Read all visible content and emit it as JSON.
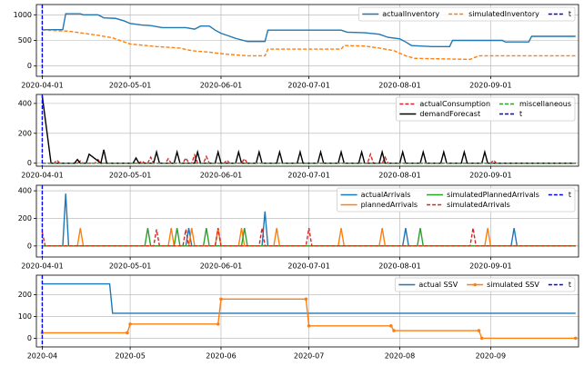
{
  "chart_data": [
    {
      "type": "line",
      "xlim": [
        "2020-03-30",
        "2020-10-01"
      ],
      "ylim": [
        -200,
        1200
      ],
      "yticks": [
        0,
        500,
        1000
      ],
      "xticks": [
        "2020-04-01",
        "2020-05-01",
        "2020-06-01",
        "2020-07-01",
        "2020-08-01",
        "2020-09-01"
      ],
      "grid": true,
      "legend": "upper right",
      "legend_columns": 3,
      "series": [
        {
          "name": "actualInventory",
          "color": "#1f77b4",
          "linestyle": "solid",
          "x": [
            "2020-04-01",
            "2020-04-08",
            "2020-04-09",
            "2020-04-14",
            "2020-04-15",
            "2020-04-20",
            "2020-04-22",
            "2020-04-26",
            "2020-04-29",
            "2020-05-01",
            "2020-05-05",
            "2020-05-08",
            "2020-05-12",
            "2020-05-20",
            "2020-05-23",
            "2020-05-25",
            "2020-05-28",
            "2020-05-30",
            "2020-06-01",
            "2020-06-03",
            "2020-06-06",
            "2020-06-10",
            "2020-06-16",
            "2020-06-17",
            "2020-07-12",
            "2020-07-14",
            "2020-07-20",
            "2020-07-25",
            "2020-07-28",
            "2020-08-01",
            "2020-08-03",
            "2020-08-05",
            "2020-08-12",
            "2020-08-18",
            "2020-08-19",
            "2020-09-05",
            "2020-09-06",
            "2020-09-14",
            "2020-09-15",
            "2020-09-30"
          ],
          "values": [
            710,
            710,
            1020,
            1020,
            1000,
            1000,
            940,
            930,
            880,
            830,
            800,
            790,
            750,
            750,
            720,
            780,
            780,
            700,
            640,
            600,
            540,
            480,
            480,
            700,
            700,
            660,
            650,
            620,
            560,
            530,
            470,
            400,
            380,
            380,
            500,
            500,
            470,
            470,
            580,
            580
          ]
        },
        {
          "name": "simulatedInventory",
          "color": "#ff7f0e",
          "linestyle": "dashed",
          "x": [
            "2020-04-01",
            "2020-04-10",
            "2020-04-15",
            "2020-04-20",
            "2020-04-25",
            "2020-05-01",
            "2020-05-10",
            "2020-05-18",
            "2020-05-22",
            "2020-05-28",
            "2020-06-03",
            "2020-06-10",
            "2020-06-16",
            "2020-06-17",
            "2020-07-12",
            "2020-07-13",
            "2020-07-20",
            "2020-07-25",
            "2020-07-30",
            "2020-08-03",
            "2020-08-06",
            "2020-08-25",
            "2020-08-28",
            "2020-09-30"
          ],
          "values": [
            700,
            680,
            640,
            600,
            550,
            430,
            380,
            350,
            300,
            270,
            230,
            200,
            200,
            330,
            330,
            400,
            390,
            350,
            300,
            200,
            150,
            130,
            200,
            200
          ]
        }
      ],
      "vlines": [
        {
          "name": "t",
          "x": "2020-04-01",
          "color": "#0000ff"
        }
      ]
    },
    {
      "type": "line",
      "xlim": [
        "2020-03-30",
        "2020-10-01"
      ],
      "ylim": [
        -20,
        460
      ],
      "yticks": [
        0,
        200,
        400
      ],
      "xticks": [
        "2020-04-01",
        "2020-05-01",
        "2020-06-01",
        "2020-07-01",
        "2020-08-01",
        "2020-09-01"
      ],
      "grid": true,
      "legend": "upper right",
      "legend_columns": 3,
      "series": [
        {
          "name": "actualConsumption",
          "color": "#d62728",
          "linestyle": "dashed",
          "x": [
            "2020-04-01",
            "2020-04-05",
            "2020-04-06",
            "2020-04-07",
            "2020-04-13",
            "2020-04-14",
            "2020-04-15",
            "2020-04-19",
            "2020-04-20",
            "2020-04-21",
            "2020-05-04",
            "2020-05-05",
            "2020-05-06",
            "2020-05-07",
            "2020-05-08",
            "2020-05-09",
            "2020-05-13",
            "2020-05-14",
            "2020-05-15",
            "2020-05-19",
            "2020-05-20",
            "2020-05-21",
            "2020-05-22",
            "2020-05-23",
            "2020-05-24",
            "2020-05-26",
            "2020-05-27",
            "2020-05-28",
            "2020-06-02",
            "2020-06-03",
            "2020-06-04",
            "2020-06-08",
            "2020-06-09",
            "2020-06-10",
            "2020-07-21",
            "2020-07-22",
            "2020-07-23",
            "2020-07-26",
            "2020-07-27",
            "2020-07-28",
            "2020-09-01",
            "2020-09-02",
            "2020-09-03",
            "2020-09-30"
          ],
          "values": [
            0,
            0,
            20,
            0,
            0,
            15,
            0,
            0,
            25,
            0,
            0,
            15,
            0,
            0,
            40,
            0,
            0,
            30,
            0,
            0,
            35,
            0,
            0,
            55,
            0,
            0,
            45,
            0,
            0,
            20,
            0,
            0,
            30,
            0,
            0,
            60,
            0,
            0,
            40,
            0,
            0,
            20,
            0,
            0
          ]
        },
        {
          "name": "demandForecast",
          "color": "#000000",
          "linestyle": "solid",
          "x": [
            "2020-04-01",
            "2020-04-04",
            "2020-04-12",
            "2020-04-13",
            "2020-04-14",
            "2020-04-16",
            "2020-04-17",
            "2020-04-21",
            "2020-04-22",
            "2020-04-23",
            "2020-05-02",
            "2020-05-03",
            "2020-05-04",
            "2020-05-09",
            "2020-05-10",
            "2020-05-11",
            "2020-05-16",
            "2020-05-17",
            "2020-05-18",
            "2020-05-23",
            "2020-05-24",
            "2020-05-25",
            "2020-05-30",
            "2020-05-31",
            "2020-06-01",
            "2020-06-06",
            "2020-06-07",
            "2020-06-08",
            "2020-06-13",
            "2020-06-14",
            "2020-06-15",
            "2020-06-20",
            "2020-06-21",
            "2020-06-22",
            "2020-06-27",
            "2020-06-28",
            "2020-06-29",
            "2020-07-04",
            "2020-07-05",
            "2020-07-06",
            "2020-07-11",
            "2020-07-12",
            "2020-07-13",
            "2020-07-18",
            "2020-07-19",
            "2020-07-20",
            "2020-07-25",
            "2020-07-26",
            "2020-07-27",
            "2020-08-01",
            "2020-08-02",
            "2020-08-03",
            "2020-08-08",
            "2020-08-09",
            "2020-08-10",
            "2020-08-15",
            "2020-08-16",
            "2020-08-17",
            "2020-08-22",
            "2020-08-23",
            "2020-08-24",
            "2020-08-29",
            "2020-08-30",
            "2020-08-31",
            "2020-09-30"
          ],
          "values": [
            450,
            0,
            0,
            25,
            0,
            0,
            60,
            0,
            90,
            0,
            0,
            35,
            0,
            0,
            75,
            0,
            0,
            75,
            0,
            0,
            75,
            0,
            0,
            75,
            0,
            0,
            75,
            0,
            0,
            75,
            0,
            0,
            75,
            0,
            0,
            75,
            0,
            0,
            75,
            0,
            0,
            75,
            0,
            0,
            75,
            0,
            0,
            75,
            0,
            0,
            75,
            0,
            0,
            75,
            0,
            0,
            75,
            0,
            0,
            75,
            0,
            0,
            75,
            0,
            0
          ]
        },
        {
          "name": "miscellaneous",
          "color": "#2ca02c",
          "linestyle": "dashed",
          "x": [
            "2020-04-01",
            "2020-09-30"
          ],
          "values": [
            0,
            0
          ]
        }
      ],
      "vlines": [
        {
          "name": "t",
          "x": "2020-04-01",
          "color": "#0000ff"
        }
      ]
    },
    {
      "type": "line",
      "xlim": [
        "2020-03-30",
        "2020-10-01"
      ],
      "ylim": [
        -80,
        440
      ],
      "yticks": [
        0,
        200,
        400
      ],
      "xticks": [
        "2020-04-01",
        "2020-05-01",
        "2020-06-01",
        "2020-07-01",
        "2020-08-01",
        "2020-09-01"
      ],
      "grid": true,
      "legend": "upper right",
      "legend_columns": 3,
      "series": [
        {
          "name": "actualArrivals",
          "color": "#1f77b4",
          "linestyle": "solid",
          "x": [
            "2020-04-01",
            "2020-04-08",
            "2020-04-09",
            "2020-04-10",
            "2020-05-20",
            "2020-05-21",
            "2020-05-22",
            "2020-06-15",
            "2020-06-16",
            "2020-06-17",
            "2020-08-02",
            "2020-08-03",
            "2020-08-04",
            "2020-09-08",
            "2020-09-09",
            "2020-09-10",
            "2020-09-30"
          ],
          "values": [
            0,
            0,
            380,
            0,
            0,
            130,
            0,
            0,
            250,
            0,
            0,
            130,
            0,
            0,
            130,
            0,
            0
          ]
        },
        {
          "name": "plannedArrivals",
          "color": "#ff7f0e",
          "linestyle": "solid",
          "x": [
            "2020-04-01",
            "2020-04-13",
            "2020-04-14",
            "2020-04-15",
            "2020-05-14",
            "2020-05-15",
            "2020-05-16",
            "2020-05-21",
            "2020-05-22",
            "2020-05-23",
            "2020-05-30",
            "2020-05-31",
            "2020-06-01",
            "2020-06-07",
            "2020-06-08",
            "2020-06-09",
            "2020-06-19",
            "2020-06-20",
            "2020-06-21",
            "2020-07-11",
            "2020-07-12",
            "2020-07-13",
            "2020-07-25",
            "2020-07-26",
            "2020-07-27",
            "2020-08-30",
            "2020-08-31",
            "2020-09-01",
            "2020-09-30"
          ],
          "values": [
            0,
            0,
            130,
            0,
            0,
            130,
            0,
            0,
            130,
            0,
            0,
            130,
            0,
            0,
            130,
            0,
            0,
            130,
            0,
            0,
            130,
            0,
            0,
            130,
            0,
            0,
            130,
            0,
            0
          ]
        },
        {
          "name": "simulatedPlannedArrivals",
          "color": "#2ca02c",
          "linestyle": "solid",
          "x": [
            "2020-04-01",
            "2020-05-06",
            "2020-05-07",
            "2020-05-08",
            "2020-05-16",
            "2020-05-17",
            "2020-05-18",
            "2020-05-26",
            "2020-05-27",
            "2020-05-28",
            "2020-06-08",
            "2020-06-09",
            "2020-06-10",
            "2020-08-07",
            "2020-08-08",
            "2020-08-09",
            "2020-09-30"
          ],
          "values": [
            0,
            0,
            130,
            0,
            0,
            130,
            0,
            0,
            130,
            0,
            0,
            130,
            0,
            0,
            130,
            0,
            0
          ]
        },
        {
          "name": "simulatedArrivals",
          "color": "#d62728",
          "linestyle": "dashed",
          "x": [
            "2020-04-01",
            "2020-04-02",
            "2020-05-09",
            "2020-05-10",
            "2020-05-11",
            "2020-05-19",
            "2020-05-20",
            "2020-05-21",
            "2020-05-30",
            "2020-05-31",
            "2020-06-01",
            "2020-06-14",
            "2020-06-15",
            "2020-06-16",
            "2020-06-30",
            "2020-07-01",
            "2020-07-02",
            "2020-08-25",
            "2020-08-26",
            "2020-08-27",
            "2020-09-30"
          ],
          "values": [
            100,
            0,
            0,
            120,
            0,
            0,
            120,
            0,
            0,
            130,
            0,
            0,
            130,
            0,
            0,
            130,
            0,
            0,
            130,
            0,
            0
          ]
        }
      ],
      "vlines": [
        {
          "name": "t",
          "x": "2020-04-01",
          "color": "#0000ff"
        }
      ]
    },
    {
      "type": "line",
      "xlim": [
        "2020-03-30",
        "2020-10-01"
      ],
      "ylim": [
        -40,
        290
      ],
      "yticks": [
        0,
        100,
        200
      ],
      "xticks": [
        {
          "value": "2020-04-01",
          "label": "2020-04"
        },
        {
          "value": "2020-05-01",
          "label": "2020-05"
        },
        {
          "value": "2020-06-01",
          "label": "2020-06"
        },
        {
          "value": "2020-07-01",
          "label": "2020-07"
        },
        {
          "value": "2020-08-01",
          "label": "2020-08"
        },
        {
          "value": "2020-09-01",
          "label": "2020-09"
        }
      ],
      "grid": true,
      "legend": "upper right",
      "legend_columns": 3,
      "series": [
        {
          "name": "actual SSV",
          "color": "#1f77b4",
          "linestyle": "solid",
          "x": [
            "2020-04-01",
            "2020-04-24",
            "2020-04-25",
            "2020-09-30"
          ],
          "values": [
            250,
            250,
            115,
            115
          ]
        },
        {
          "name": "simulated SSV",
          "color": "#ff7f0e",
          "linestyle": "solid",
          "marker": "o",
          "x": [
            "2020-04-01",
            "2020-04-30",
            "2020-05-01",
            "2020-05-31",
            "2020-06-01",
            "2020-06-30",
            "2020-07-01",
            "2020-07-29",
            "2020-07-30",
            "2020-08-28",
            "2020-08-29",
            "2020-09-30"
          ],
          "values": [
            25,
            25,
            65,
            65,
            180,
            180,
            57,
            57,
            35,
            35,
            0,
            0
          ]
        }
      ],
      "vlines": [
        {
          "name": "t",
          "x": "2020-04-01",
          "color": "#0000ff"
        }
      ]
    }
  ]
}
